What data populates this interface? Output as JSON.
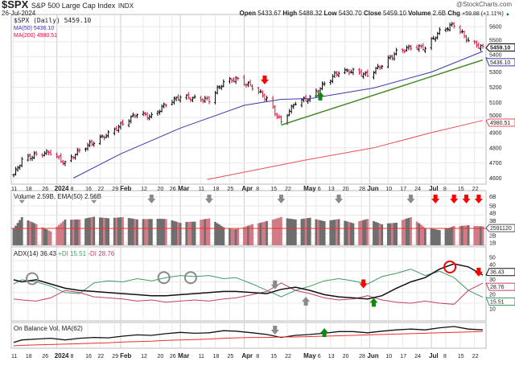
{
  "header": {
    "symbol": "$SPX",
    "name": "S&P 500 Large Cap Index",
    "exchange": "INDX",
    "date": "26-Jul-2024",
    "watermark": "@StockCharts.com",
    "open_label": "Open",
    "open": "5433.67",
    "high_label": "High",
    "high": "5488.32",
    "low_label": "Low",
    "low": "5430.70",
    "close_label": "Close",
    "close": "5459.10",
    "volume_label": "Volume",
    "volume": "2.6B",
    "chg_label": "Chg",
    "chg": "+59.88 (+1.11%)"
  },
  "legend": {
    "price": "$SPX (Daily) 5459.10",
    "ma50": "MA(50) 5436.10",
    "ma200": "MA(200) 4980.51",
    "volume": "Volume 2.59B, EMA(50) 2.56B",
    "adx": "ADX(14) 36.43",
    "pdi": "+DI 15.51",
    "mdi": "-DI 28.76",
    "obv": "On Balance Vol, MA(62)"
  },
  "tags": {
    "price": "5459.10",
    "ma50": "5436.10",
    "ma200": "4980.51",
    "volume": "2591120",
    "adx": "36.43",
    "mdi": "28.76",
    "pdi": "15.51"
  },
  "colors": {
    "up": "#000000",
    "down": "#e0103a",
    "ma50": "#3a3aa8",
    "ma200": "#e8505a",
    "trend": "#4a8a2a",
    "adx": "#111111",
    "pdi": "#3f9a64",
    "mdi": "#c0406a",
    "vol_up": "#6e6e6e",
    "vol_down": "#d27a86",
    "arrow_red": "#ff0000",
    "arrow_green": "#118811",
    "arrow_gray": "#8a8a8a"
  },
  "chart_data": {
    "type": "ohlc",
    "x_ticks": [
      {
        "d": "2023-12-11",
        "l": "11"
      },
      {
        "d": "2023-12-18",
        "l": "18"
      },
      {
        "d": "2023-12-26",
        "l": "26"
      },
      {
        "d": "2024-01-01",
        "l": "2024",
        "b": true
      },
      {
        "d": "2024-01-08",
        "l": "8"
      },
      {
        "d": "2024-01-16",
        "l": "16"
      },
      {
        "d": "2024-01-22",
        "l": "22"
      },
      {
        "d": "2024-01-29",
        "l": "29"
      },
      {
        "d": "2024-02-01",
        "l": "Feb",
        "b": true
      },
      {
        "d": "2024-02-12",
        "l": "12"
      },
      {
        "d": "2024-02-20",
        "l": "20"
      },
      {
        "d": "2024-02-26",
        "l": "26"
      },
      {
        "d": "2024-03-01",
        "l": "Mar",
        "b": true
      },
      {
        "d": "2024-03-11",
        "l": "11"
      },
      {
        "d": "2024-03-18",
        "l": "18"
      },
      {
        "d": "2024-03-25",
        "l": "25"
      },
      {
        "d": "2024-04-01",
        "l": "Apr",
        "b": true
      },
      {
        "d": "2024-04-08",
        "l": "8"
      },
      {
        "d": "2024-04-15",
        "l": "15"
      },
      {
        "d": "2024-04-22",
        "l": "22"
      },
      {
        "d": "2024-05-01",
        "l": "May",
        "b": true
      },
      {
        "d": "2024-05-06",
        "l": "6"
      },
      {
        "d": "2024-05-13",
        "l": "13"
      },
      {
        "d": "2024-05-20",
        "l": "20"
      },
      {
        "d": "2024-05-28",
        "l": "28"
      },
      {
        "d": "2024-06-01",
        "l": "Jun",
        "b": true
      },
      {
        "d": "2024-06-10",
        "l": "10"
      },
      {
        "d": "2024-06-17",
        "l": "17"
      },
      {
        "d": "2024-06-24",
        "l": "24"
      },
      {
        "d": "2024-07-01",
        "l": "Jul",
        "b": true
      },
      {
        "d": "2024-07-08",
        "l": "8"
      },
      {
        "d": "2024-07-15",
        "l": "15"
      },
      {
        "d": "2024-07-22",
        "l": "22"
      }
    ],
    "price_axis": {
      "ylim": [
        4560,
        5680
      ],
      "ticks": [
        4600,
        4700,
        4800,
        4900,
        5000,
        5100,
        5200,
        5300,
        5400,
        5500,
        5600
      ]
    },
    "weekly_close": {
      "dates": [
        "2023-12-11",
        "2023-12-15",
        "2023-12-22",
        "2023-12-29",
        "2024-01-05",
        "2024-01-12",
        "2024-01-19",
        "2024-01-26",
        "2024-02-02",
        "2024-02-09",
        "2024-02-16",
        "2024-02-23",
        "2024-03-01",
        "2024-03-08",
        "2024-03-15",
        "2024-03-22",
        "2024-03-28",
        "2024-04-05",
        "2024-04-12",
        "2024-04-19",
        "2024-04-26",
        "2024-05-03",
        "2024-05-10",
        "2024-05-17",
        "2024-05-24",
        "2024-05-31",
        "2024-06-07",
        "2024-06-14",
        "2024-06-21",
        "2024-06-28",
        "2024-07-05",
        "2024-07-12",
        "2024-07-19",
        "2024-07-26"
      ],
      "close": [
        4622,
        4719,
        4755,
        4770,
        4697,
        4784,
        4840,
        4891,
        4959,
        5027,
        5005,
        5089,
        5137,
        5124,
        5117,
        5234,
        5254,
        5204,
        5123,
        4967,
        5100,
        5128,
        5223,
        5303,
        5305,
        5278,
        5347,
        5431,
        5465,
        5460,
        5567,
        5615,
        5505,
        5459
      ],
      "volume_b": [
        3.2,
        4.5,
        3.4,
        2.4,
        3.6,
        3.5,
        3.7,
        3.5,
        3.6,
        3.4,
        3.5,
        3.6,
        3.3,
        3.6,
        4.2,
        3.3,
        3.0,
        3.4,
        3.6,
        3.9,
        3.5,
        3.6,
        3.2,
        3.4,
        3.0,
        3.5,
        3.0,
        3.3,
        4.1,
        3.0,
        2.9,
        3.4,
        3.3,
        3.0
      ],
      "adx": [
        32,
        30,
        32,
        28,
        24,
        22,
        21,
        20,
        19,
        18,
        17,
        17,
        18,
        19,
        20,
        21,
        21,
        20,
        19,
        23,
        25,
        22,
        18,
        16,
        15,
        14,
        17,
        24,
        30,
        34,
        42,
        47,
        44,
        36.43
      ],
      "plus_di": [
        28,
        32,
        30,
        26,
        20,
        19,
        29,
        31,
        30,
        33,
        31,
        34,
        36,
        35,
        36,
        33,
        34,
        28,
        22,
        16,
        22,
        26,
        31,
        33,
        31,
        28,
        35,
        38,
        42,
        36,
        40,
        34,
        22,
        15.51
      ],
      "minus_di": [
        14,
        13,
        12,
        15,
        22,
        20,
        16,
        15,
        14,
        12,
        13,
        11,
        12,
        13,
        12,
        14,
        15,
        18,
        21,
        29,
        22,
        19,
        15,
        13,
        14,
        17,
        13,
        11,
        10,
        12,
        10,
        9,
        22,
        28.76
      ],
      "obv": [
        10,
        16,
        18,
        20,
        16,
        20,
        22,
        21,
        25,
        28,
        27,
        31,
        34,
        32,
        33,
        38,
        37,
        33,
        29,
        22,
        27,
        29,
        32,
        36,
        36,
        33,
        37,
        40,
        42,
        40,
        45,
        48,
        42,
        40
      ],
      "obv_ma": [
        2,
        3,
        4,
        5,
        6,
        7,
        8,
        9,
        11,
        12,
        13,
        15,
        16,
        17,
        18,
        20,
        21,
        22,
        22,
        23,
        23,
        24,
        25,
        26,
        27,
        28,
        29,
        30,
        31,
        32,
        33,
        34,
        35,
        36
      ]
    },
    "ma50": {
      "dates": [
        "2024-01-09",
        "2024-02-01",
        "2024-03-01",
        "2024-04-01",
        "2024-04-19",
        "2024-05-03",
        "2024-06-03",
        "2024-07-01",
        "2024-07-26"
      ],
      "values": [
        4600,
        4760,
        4930,
        5080,
        5120,
        5125,
        5195,
        5300,
        5436.1
      ]
    },
    "ma200": {
      "dates": [
        "2024-03-14",
        "2024-05-01",
        "2024-06-03",
        "2024-07-01",
        "2024-07-26"
      ],
      "values": [
        4590,
        4720,
        4800,
        4900,
        4980.51
      ]
    },
    "trendline": {
      "dates": [
        "2024-04-19",
        "2024-07-26"
      ],
      "values": [
        4950,
        5380
      ]
    },
    "volume_axis": {
      "ticks": [
        "1B",
        "2B",
        "3B",
        "4B",
        "5B",
        "6B"
      ]
    },
    "adx_axis": {
      "ticks": [
        10,
        20,
        30,
        40,
        50
      ]
    },
    "annotations": [
      {
        "panel": "price",
        "type": "arrow-down",
        "color": "arrow_red",
        "date": "2024-04-11",
        "value": 5240
      },
      {
        "panel": "price",
        "type": "arrow-up",
        "color": "arrow_green",
        "date": "2024-05-08",
        "value": 5150
      },
      {
        "panel": "volume",
        "type": "arrow-down",
        "color": "arrow_gray",
        "date": "2023-12-15"
      },
      {
        "panel": "volume",
        "type": "arrow-down",
        "color": "arrow_gray",
        "date": "2024-01-19"
      },
      {
        "panel": "volume",
        "type": "arrow-down",
        "color": "arrow_gray",
        "date": "2024-02-16"
      },
      {
        "panel": "volume",
        "type": "arrow-down",
        "color": "arrow_gray",
        "date": "2024-03-15"
      },
      {
        "panel": "volume",
        "type": "arrow-down",
        "color": "arrow_gray",
        "date": "2024-04-19"
      },
      {
        "panel": "volume",
        "type": "arrow-down",
        "color": "arrow_gray",
        "date": "2024-05-17"
      },
      {
        "panel": "volume",
        "type": "arrow-down",
        "color": "arrow_gray",
        "date": "2024-06-21"
      },
      {
        "panel": "volume",
        "type": "arrow-down",
        "color": "arrow_red",
        "date": "2024-07-03"
      },
      {
        "panel": "volume",
        "type": "arrow-down",
        "color": "arrow_red",
        "date": "2024-07-12"
      },
      {
        "panel": "volume",
        "type": "arrow-down",
        "color": "arrow_red",
        "date": "2024-07-18"
      },
      {
        "panel": "volume",
        "type": "arrow-down",
        "color": "arrow_red",
        "date": "2024-07-24"
      },
      {
        "panel": "adx",
        "type": "circle",
        "color": "arrow_gray",
        "date": "2023-12-20",
        "value": 33
      },
      {
        "panel": "adx",
        "type": "circle",
        "color": "arrow_gray",
        "date": "2024-02-22",
        "value": 34
      },
      {
        "panel": "adx",
        "type": "circle",
        "color": "arrow_gray",
        "date": "2024-03-06",
        "value": 34
      },
      {
        "panel": "adx",
        "type": "circle",
        "color": "arrow_red",
        "date": "2024-07-10",
        "value": 44
      },
      {
        "panel": "adx",
        "type": "arrow-down",
        "color": "arrow_gray",
        "date": "2024-04-16",
        "value": 26
      },
      {
        "panel": "adx",
        "type": "arrow-up",
        "color": "arrow_gray",
        "date": "2024-05-01",
        "value": 13
      },
      {
        "panel": "adx",
        "type": "arrow-down",
        "color": "arrow_red",
        "date": "2024-05-29",
        "value": 27
      },
      {
        "panel": "adx",
        "type": "arrow-up",
        "color": "arrow_green",
        "date": "2024-06-03",
        "value": 12
      },
      {
        "panel": "adx",
        "type": "arrow-down",
        "color": "arrow_red",
        "date": "2024-07-24",
        "value": 38
      },
      {
        "panel": "obv",
        "type": "arrow-down",
        "color": "arrow_gray",
        "date": "2024-04-16"
      },
      {
        "panel": "obv",
        "type": "arrow-up",
        "color": "arrow_green",
        "date": "2024-05-10"
      }
    ]
  }
}
